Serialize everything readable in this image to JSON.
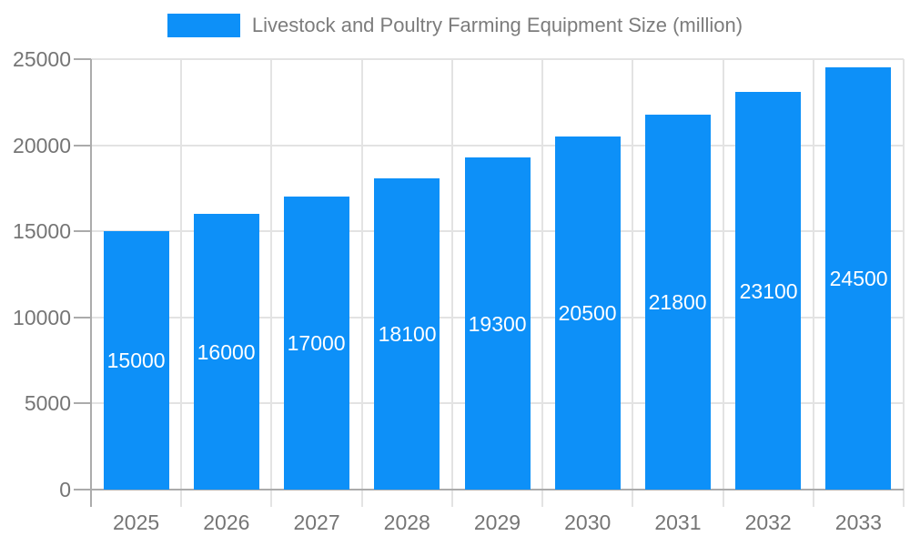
{
  "legend": {
    "label": "Livestock and Poultry Farming Equipment Size (million)"
  },
  "chart_data": {
    "type": "bar",
    "title": "Livestock and Poultry Farming Equipment Size (million)",
    "categories": [
      "2025",
      "2026",
      "2027",
      "2028",
      "2029",
      "2030",
      "2031",
      "2032",
      "2033"
    ],
    "series": [
      {
        "name": "Livestock and Poultry Farming Equipment Size (million)",
        "values": [
          15000,
          16000,
          17000,
          18100,
          19300,
          20500,
          21800,
          23100,
          24500
        ]
      }
    ],
    "value_labels": [
      "15000",
      "16000",
      "17000",
      "18100",
      "19300",
      "20500",
      "21800",
      "23100",
      "24500"
    ],
    "xlabel": "",
    "ylabel": "",
    "ylim": [
      0,
      25000
    ],
    "y_ticks": [
      0,
      5000,
      10000,
      15000,
      20000,
      25000
    ],
    "grid": "horizontal-gridlines-and-vertical-category-separators",
    "legend_position": "top-center",
    "value_label_position": "inside-bar-center",
    "colors": {
      "bar": "#0d90f8",
      "grid_line": "#e3e3e3",
      "axis_line": "#ababab",
      "tick_label": "#757575",
      "legend_label": "#7c7c7c",
      "bar_value_label": "#ffffff",
      "background": "#ffffff"
    }
  }
}
